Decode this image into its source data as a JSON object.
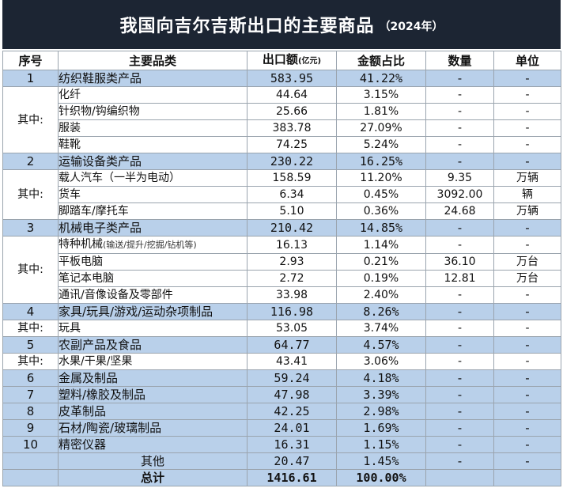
{
  "title": "我国向吉尔吉斯出口的主要商品",
  "year": "（2024年）",
  "headers": {
    "index": "序号",
    "category": "主要品类",
    "export": "出口额",
    "export_unit": "(亿元)",
    "share": "金额占比",
    "qty": "数量",
    "unit": "单位"
  },
  "sub_label": "其中:",
  "rows": {
    "r1": {
      "idx": "1",
      "name": "纺织鞋服类产品",
      "value": "583.95",
      "share": "41.22%",
      "qty": "-",
      "unit": "-"
    },
    "r1a": {
      "name": "化纤",
      "value": "44.64",
      "share": "3.15%",
      "qty": "-",
      "unit": "-"
    },
    "r1b": {
      "name": "针织物/钩编织物",
      "value": "25.66",
      "share": "1.81%",
      "qty": "-",
      "unit": "-"
    },
    "r1c": {
      "name": "服装",
      "value": "383.78",
      "share": "27.09%",
      "qty": "-",
      "unit": "-"
    },
    "r1d": {
      "name": "鞋靴",
      "value": "74.25",
      "share": "5.24%",
      "qty": "-",
      "unit": "-"
    },
    "r2": {
      "idx": "2",
      "name": "运输设备类产品",
      "value": "230.22",
      "share": "16.25%",
      "qty": "-",
      "unit": "-"
    },
    "r2a": {
      "name": "载人汽车（一半为电动）",
      "value": "158.59",
      "share": "11.20%",
      "qty": "9.35",
      "unit": "万辆"
    },
    "r2b": {
      "name": "货车",
      "value": "6.34",
      "share": "0.45%",
      "qty": "3092.00",
      "unit": "辆"
    },
    "r2c": {
      "name": "脚踏车/摩托车",
      "value": "5.10",
      "share": "0.36%",
      "qty": "24.68",
      "unit": "万辆"
    },
    "r3": {
      "idx": "3",
      "name": "机械电子类产品",
      "value": "210.42",
      "share": "14.85%",
      "qty": "-",
      "unit": "-"
    },
    "r3a": {
      "name": "特种机械",
      "name_note": "(输送/提升/挖掘/钻机等)",
      "value": "16.13",
      "share": "1.14%",
      "qty": "-",
      "unit": "-"
    },
    "r3b": {
      "name": "平板电脑",
      "value": "2.93",
      "share": "0.21%",
      "qty": "36.10",
      "unit": "万台"
    },
    "r3c": {
      "name": "笔记本电脑",
      "value": "2.72",
      "share": "0.19%",
      "qty": "12.81",
      "unit": "万台"
    },
    "r3d": {
      "name": "通讯/音像设备及零部件",
      "value": "33.98",
      "share": "2.40%",
      "qty": "-",
      "unit": "-"
    },
    "r4": {
      "idx": "4",
      "name": "家具/玩具/游戏/运动杂项制品",
      "value": "116.98",
      "share": "8.26%",
      "qty": "-",
      "unit": "-"
    },
    "r4a": {
      "name": "玩具",
      "value": "53.05",
      "share": "3.74%",
      "qty": "-",
      "unit": "-"
    },
    "r5": {
      "idx": "5",
      "name": "农副产品及食品",
      "value": "64.77",
      "share": "4.57%",
      "qty": "-",
      "unit": "-"
    },
    "r5a": {
      "name": "水果/干果/坚果",
      "value": "43.41",
      "share": "3.06%",
      "qty": "-",
      "unit": "-"
    },
    "r6": {
      "idx": "6",
      "name": "金属及制品",
      "value": "59.24",
      "share": "4.18%",
      "qty": "-",
      "unit": "-"
    },
    "r7": {
      "idx": "7",
      "name": "塑料/橡胶及制品",
      "value": "47.98",
      "share": "3.39%",
      "qty": "-",
      "unit": "-"
    },
    "r8": {
      "idx": "8",
      "name": "皮革制品",
      "value": "42.25",
      "share": "2.98%",
      "qty": "-",
      "unit": "-"
    },
    "r9": {
      "idx": "9",
      "name": "石材/陶瓷/玻璃制品",
      "value": "24.01",
      "share": "1.69%",
      "qty": "-",
      "unit": "-"
    },
    "r10": {
      "idx": "10",
      "name": "精密仪器",
      "value": "16.31",
      "share": "1.15%",
      "qty": "-",
      "unit": "-"
    },
    "r11": {
      "name": "其他",
      "value": "20.47",
      "share": "1.45%",
      "qty": "-",
      "unit": "-"
    },
    "total": {
      "name": "总计",
      "value": "1416.61",
      "share": "100.00%"
    }
  }
}
